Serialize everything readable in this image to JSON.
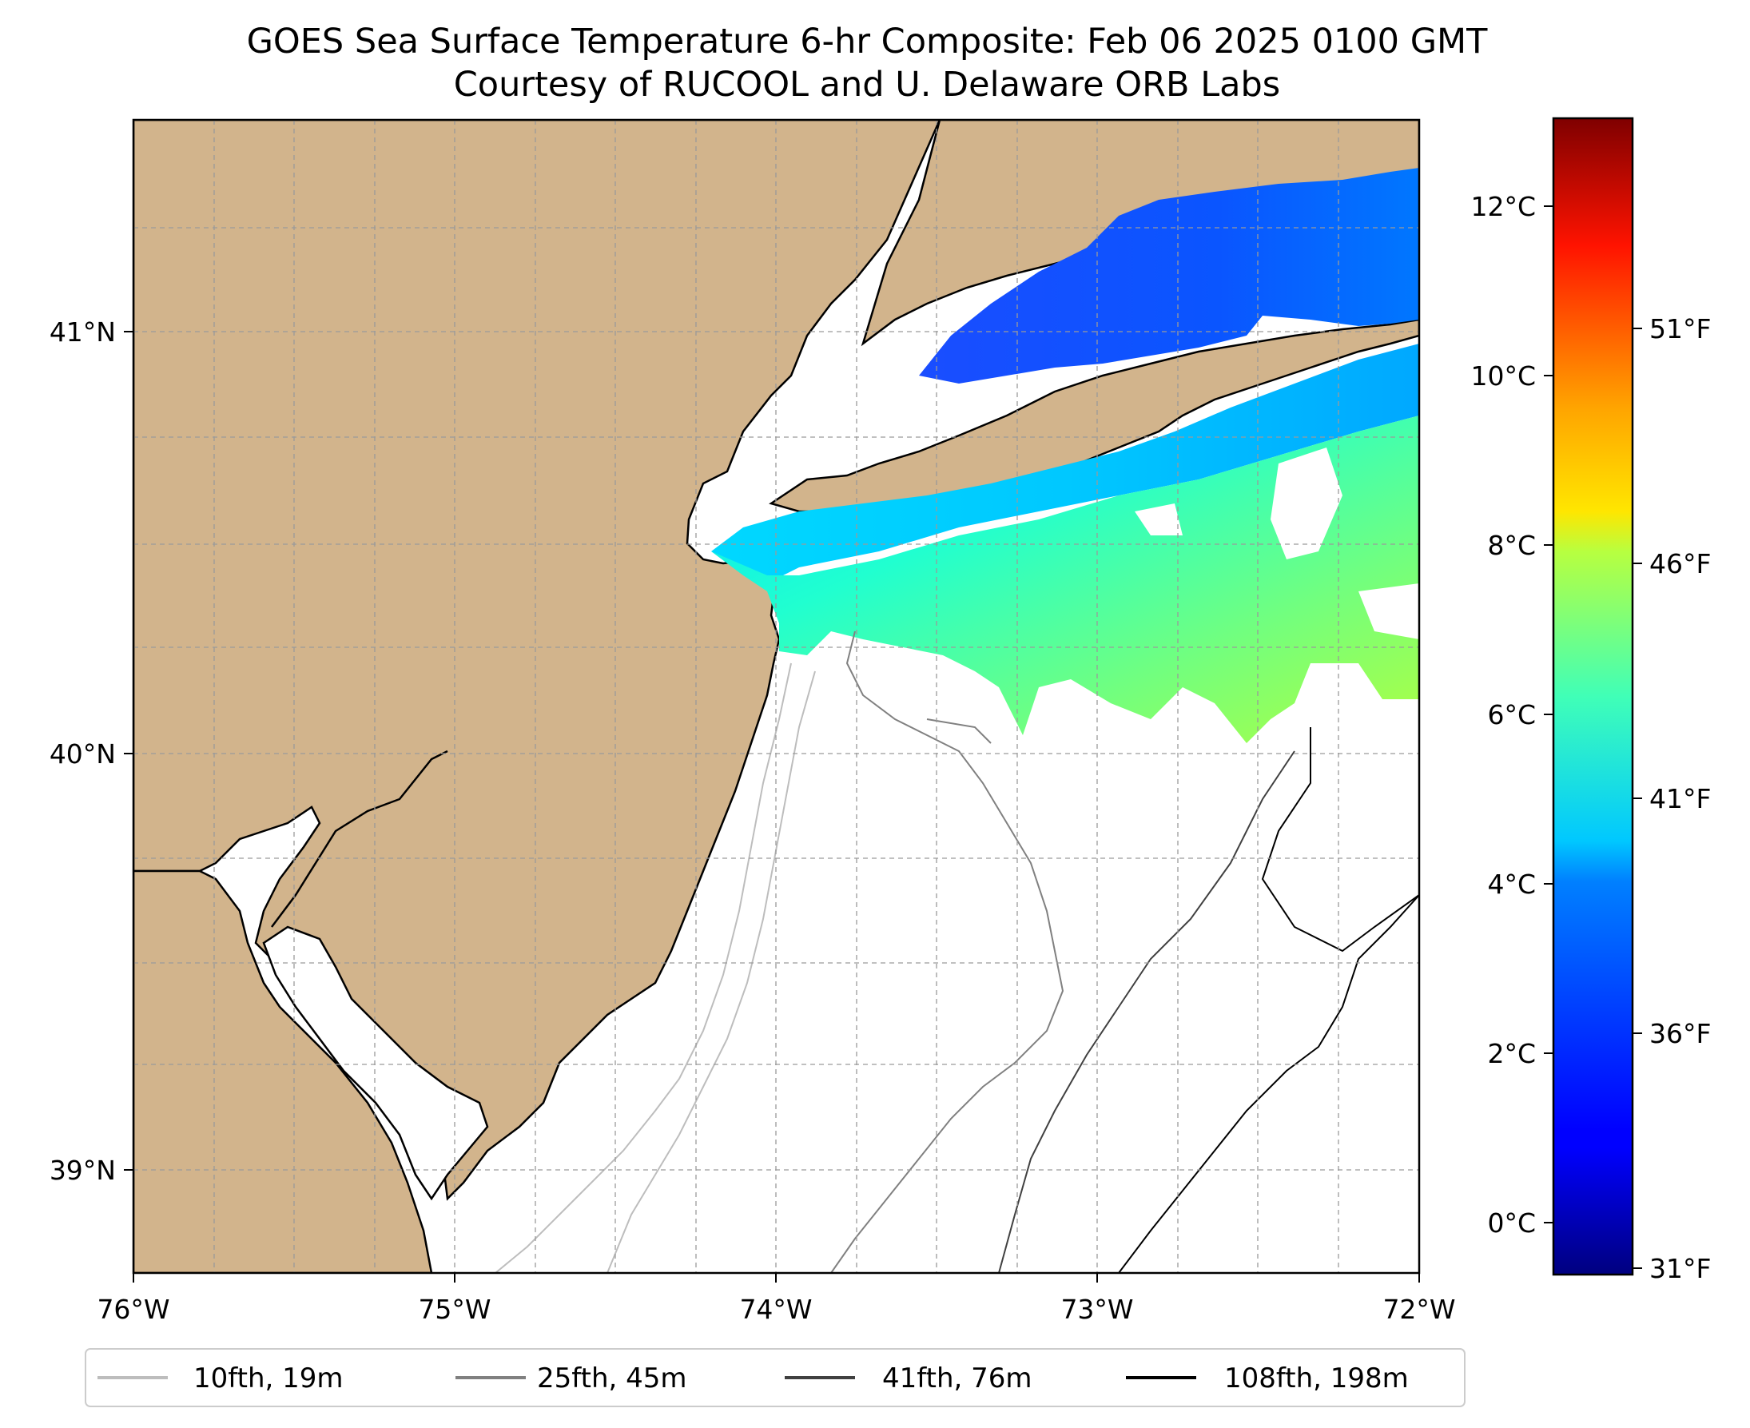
{
  "title": {
    "line1": "GOES Sea Surface Temperature 6-hr Composite: Feb 06 2025 0100 GMT",
    "line2": "Courtesy of RUCOOL and U. Delaware ORB Labs"
  },
  "map": {
    "lon_range": [
      -76,
      -72
    ],
    "lat_range": [
      38.75,
      41.55
    ],
    "lon_ticks": [
      "76°W",
      "75°W",
      "74°W",
      "73°W",
      "72°W"
    ],
    "lat_ticks": [
      "41°N",
      "40°N",
      "39°N"
    ],
    "land_color": "#d2b48c",
    "ocean_color": "#ffffff",
    "gridlines": true
  },
  "colorbar": {
    "colormap": "jet",
    "celsius_ticks": [
      "12°C",
      "10°C",
      "8°C",
      "6°C",
      "4°C",
      "2°C",
      "0°C"
    ],
    "fahrenheit_ticks": [
      "51°F",
      "46°F",
      "41°F",
      "36°F",
      "31°F"
    ]
  },
  "legend": {
    "items": [
      {
        "label": "10fth, 19m",
        "color": "#bdbdbd"
      },
      {
        "label": "25fth, 45m",
        "color": "#808080"
      },
      {
        "label": "41fth, 76m",
        "color": "#404040"
      },
      {
        "label": "108fth, 198m",
        "color": "#000000"
      }
    ]
  }
}
